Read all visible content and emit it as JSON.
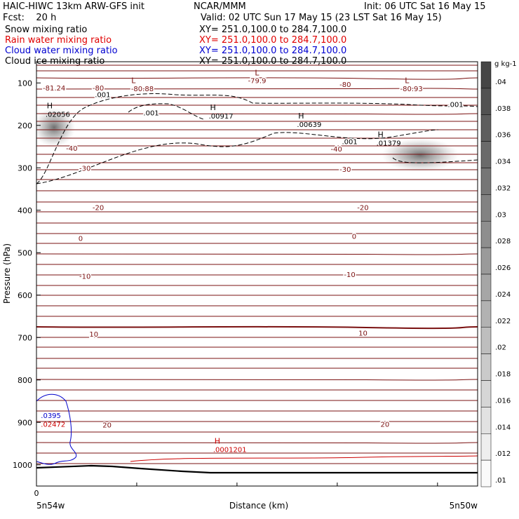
{
  "header": {
    "title_left": "HAIC-HIWC 13km ARW-GFS init",
    "title_center": "NCAR/MMM",
    "init": "Init: 06 UTC Sat 16 May 15",
    "fcst": "Fcst:    20 h",
    "valid": "Valid: 02 UTC Sun 17 May 15 (23 LST Sat 16 May 15)",
    "fields": [
      {
        "name": "Snow mixing ratio",
        "xy": "XY= 251.0,100.0 to 284.7,100.0",
        "color": "#000000"
      },
      {
        "name": "Rain water mixing ratio",
        "xy": "XY= 251.0,100.0 to 284.7,100.0",
        "color": "#e00000"
      },
      {
        "name": "Cloud water mixing ratio",
        "xy": "XY= 251.0,100.0 to 284.7,100.0",
        "color": "#0000d0"
      },
      {
        "name": "Cloud ice mixing ratio",
        "xy": "XY= 251.0,100.0 to 284.7,100.0",
        "color": "#000000"
      }
    ]
  },
  "colors": {
    "temperature": "#7a1010",
    "rain": "#cc0000",
    "cloud_water": "#0000cc",
    "ice": "#000000",
    "terrain": "#000000"
  },
  "chart_data": {
    "type": "contour",
    "xlabel": "Distance (km)",
    "ylabel": "Pressure (hPa)",
    "x_ticks": [
      "0"
    ],
    "x_end_labels": [
      "5n54w",
      "5n50w"
    ],
    "y_ticks": [
      100,
      200,
      300,
      400,
      500,
      600,
      700,
      800,
      900,
      1000
    ],
    "ylim": [
      50,
      1050
    ],
    "temperature_labels": [
      {
        "x": 0.04,
        "p": 111,
        "label": "-81.24"
      },
      {
        "x": 0.14,
        "p": 111,
        "label": "-80"
      },
      {
        "x": 0.24,
        "p": 113,
        "label": "-80.88"
      },
      {
        "x": 0.5,
        "p": 94,
        "label": "-79.9"
      },
      {
        "x": 0.7,
        "p": 103,
        "label": "-80"
      },
      {
        "x": 0.85,
        "p": 113,
        "label": "-80.93"
      },
      {
        "x": 0.08,
        "p": 253,
        "label": "-40"
      },
      {
        "x": 0.68,
        "p": 255,
        "label": "-40"
      },
      {
        "x": 0.11,
        "p": 300,
        "label": "-30"
      },
      {
        "x": 0.7,
        "p": 303,
        "label": "-30"
      },
      {
        "x": 0.14,
        "p": 393,
        "label": "-20"
      },
      {
        "x": 0.74,
        "p": 393,
        "label": "-20"
      },
      {
        "x": 0.11,
        "p": 555,
        "label": "-10"
      },
      {
        "x": 0.71,
        "p": 551,
        "label": "-10"
      },
      {
        "x": 0.1,
        "p": 466,
        "label": "0"
      },
      {
        "x": 0.72,
        "p": 461,
        "label": "0"
      },
      {
        "x": 0.13,
        "p": 691,
        "label": "10"
      },
      {
        "x": 0.74,
        "p": 689,
        "label": "10"
      },
      {
        "x": 0.16,
        "p": 905,
        "label": "20"
      },
      {
        "x": 0.79,
        "p": 904,
        "label": "20"
      }
    ],
    "highs_lows": [
      {
        "type": "L",
        "x": 0.22,
        "p": 100,
        "color": "temperature"
      },
      {
        "type": "L",
        "x": 0.5,
        "p": 82,
        "color": "temperature"
      },
      {
        "type": "L",
        "x": 0.84,
        "p": 100,
        "color": "temperature"
      },
      {
        "type": "H",
        "x": 0.03,
        "p": 160,
        "value": ".02056",
        "color": "ice"
      },
      {
        "type": "H",
        "x": 0.4,
        "p": 164,
        "value": ".00917",
        "color": "ice"
      },
      {
        "type": "H",
        "x": 0.6,
        "p": 184,
        "value": ".00639",
        "color": "ice"
      },
      {
        "type": "H",
        "x": 0.78,
        "p": 228,
        "value": ".01379",
        "color": "ice"
      },
      {
        "type": "H",
        "x": 0.41,
        "p": 950,
        "value": ".0001201",
        "color": "rain"
      }
    ],
    "ice_contour_labels": [
      {
        "x": 0.15,
        "p": 127,
        "label": ".001"
      },
      {
        "x": 0.26,
        "p": 170,
        "label": ".001"
      },
      {
        "x": 0.71,
        "p": 238,
        "label": ".001"
      },
      {
        "x": 0.95,
        "p": 150,
        "label": ".001"
      }
    ],
    "cloud_water_labels": [
      {
        "x": 0.01,
        "p": 883,
        "label": ".0395",
        "color": "cloud_water"
      },
      {
        "x": 0.01,
        "p": 904,
        "label": ".02472",
        "color": "rain"
      }
    ],
    "snow_maxima": [
      {
        "x": 0.04,
        "p": 205,
        "value": 0.026
      },
      {
        "x": 0.87,
        "p": 270,
        "value": 0.024
      }
    ],
    "colorbar": {
      "unit": "g kg-1",
      "min": 0.01,
      "max": 0.04,
      "labels": [
        ".04",
        ".038",
        ".036",
        ".034",
        ".032",
        ".03",
        ".028",
        ".026",
        ".024",
        ".022",
        ".02",
        ".018",
        ".016",
        ".014",
        ".012",
        ".01"
      ]
    }
  }
}
